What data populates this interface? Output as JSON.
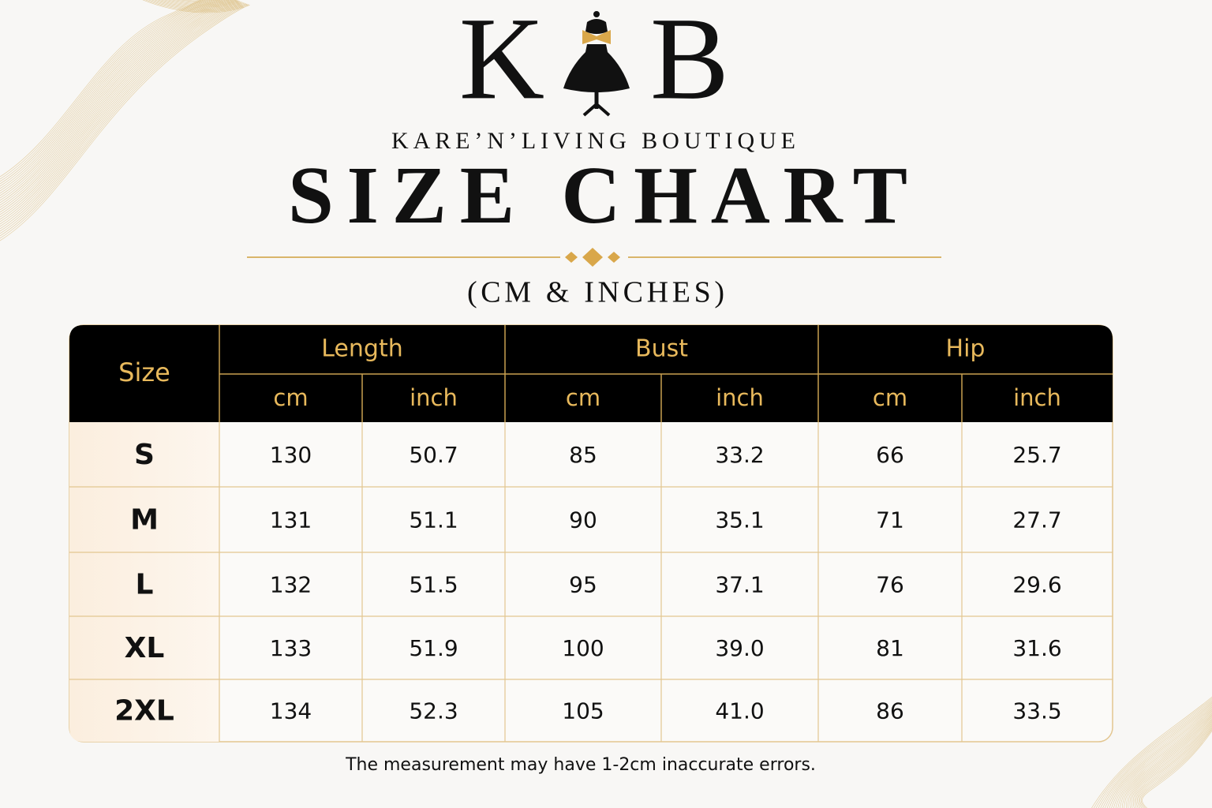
{
  "logo": {
    "left": "K",
    "right": "B"
  },
  "brand": "KARE’N’LIVING BOUTIQUE",
  "title": "SIZE CHART",
  "subtitle": "(CM & INCHES)",
  "table": {
    "size_header": "Size",
    "groups": [
      {
        "label": "Length",
        "units": [
          "cm",
          "inch"
        ]
      },
      {
        "label": "Bust",
        "units": [
          "cm",
          "inch"
        ]
      },
      {
        "label": "Hip",
        "units": [
          "cm",
          "inch"
        ]
      }
    ],
    "rows": [
      {
        "size": "S",
        "cells": [
          "130",
          "50.7",
          "85",
          "33.2",
          "66",
          "25.7"
        ]
      },
      {
        "size": "M",
        "cells": [
          "131",
          "51.1",
          "90",
          "35.1",
          "71",
          "27.7"
        ]
      },
      {
        "size": "L",
        "cells": [
          "132",
          "51.5",
          "95",
          "37.1",
          "76",
          "29.6"
        ]
      },
      {
        "size": "XL",
        "cells": [
          "133",
          "51.9",
          "100",
          "39.0",
          "81",
          "31.6"
        ]
      },
      {
        "size": "2XL",
        "cells": [
          "134",
          "52.3",
          "105",
          "41.0",
          "86",
          "33.5"
        ]
      }
    ]
  },
  "footnote": "The measurement may have 1-2cm inaccurate errors."
}
